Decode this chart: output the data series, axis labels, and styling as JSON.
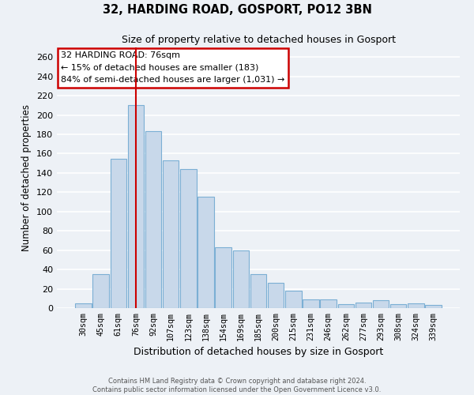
{
  "title": "32, HARDING ROAD, GOSPORT, PO12 3BN",
  "subtitle": "Size of property relative to detached houses in Gosport",
  "xlabel": "Distribution of detached houses by size in Gosport",
  "ylabel": "Number of detached properties",
  "categories": [
    "30sqm",
    "45sqm",
    "61sqm",
    "76sqm",
    "92sqm",
    "107sqm",
    "123sqm",
    "138sqm",
    "154sqm",
    "169sqm",
    "185sqm",
    "200sqm",
    "215sqm",
    "231sqm",
    "246sqm",
    "262sqm",
    "277sqm",
    "293sqm",
    "308sqm",
    "324sqm",
    "339sqm"
  ],
  "values": [
    5,
    35,
    155,
    210,
    183,
    153,
    144,
    115,
    63,
    60,
    35,
    26,
    18,
    9,
    9,
    4,
    6,
    8,
    4,
    5,
    3
  ],
  "bar_color": "#c8d8ea",
  "bar_edgecolor": "#7bafd4",
  "highlight_index": 3,
  "highlight_line_color": "#cc0000",
  "ylim": [
    0,
    270
  ],
  "yticks": [
    0,
    20,
    40,
    60,
    80,
    100,
    120,
    140,
    160,
    180,
    200,
    220,
    240,
    260
  ],
  "annotation_title": "32 HARDING ROAD: 76sqm",
  "annotation_line1": "← 15% of detached houses are smaller (183)",
  "annotation_line2": "84% of semi-detached houses are larger (1,031) →",
  "annotation_box_facecolor": "#ffffff",
  "annotation_box_edgecolor": "#cc0000",
  "footer_line1": "Contains HM Land Registry data © Crown copyright and database right 2024.",
  "footer_line2": "Contains public sector information licensed under the Open Government Licence v3.0.",
  "background_color": "#edf1f6",
  "grid_color": "#ffffff"
}
